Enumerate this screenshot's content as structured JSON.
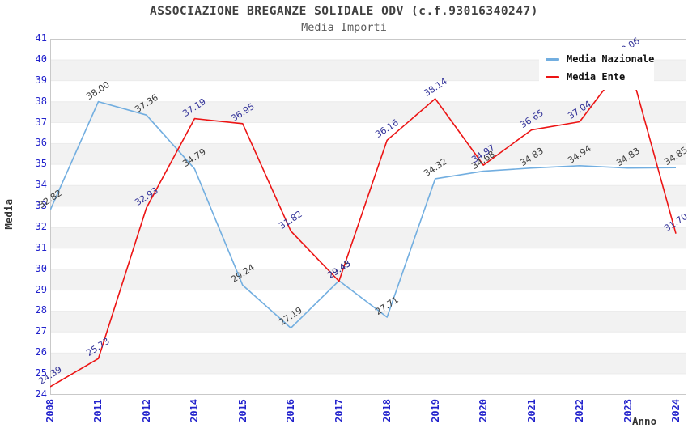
{
  "chart_data": {
    "type": "line",
    "title": "ASSOCIAZIONE BREGANZE SOLIDALE ODV (c.f.93016340247)",
    "subtitle": "Media Importi",
    "xlabel": "Anno",
    "ylabel": "Media",
    "ylim": [
      24,
      41
    ],
    "y_tick_step": 1,
    "grid": "alternating-horizontal-bands",
    "legend_position": "top-right",
    "categories": [
      "2008",
      "2011",
      "2012",
      "2014",
      "2015",
      "2016",
      "2017",
      "2018",
      "2019",
      "2020",
      "2021",
      "2022",
      "2023",
      "2024"
    ],
    "series": [
      {
        "name": "Media Nazionale",
        "color": "#72AEE0",
        "label_color": "#3C3C3C",
        "values": [
          32.82,
          38.0,
          37.36,
          34.79,
          29.24,
          27.19,
          29.45,
          27.71,
          34.32,
          34.68,
          34.83,
          34.94,
          34.83,
          34.85
        ]
      },
      {
        "name": "Media Ente",
        "color": "#EC1414",
        "label_color": "#333399",
        "values": [
          24.39,
          25.73,
          32.93,
          37.19,
          36.95,
          31.82,
          29.43,
          36.16,
          38.14,
          34.97,
          36.65,
          37.04,
          40.06,
          31.7
        ]
      }
    ],
    "colors": {
      "band": "#F2F2F2",
      "plot_border": "#C9C9C9",
      "axis_tick_label": "#2222CC",
      "title": "#404040",
      "subtitle": "#5A5A5A",
      "legend_text": "#101010",
      "background": "#FFFFFF"
    }
  }
}
